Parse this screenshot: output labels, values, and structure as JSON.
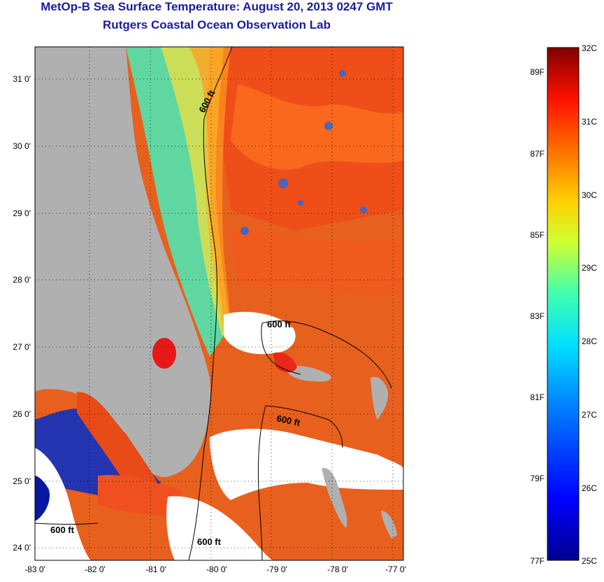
{
  "header": {
    "title": "MetOp-B Sea Surface Temperature:  August 20, 2013 0247 GMT",
    "subtitle": "Rutgers Coastal Ocean Observation Lab"
  },
  "map": {
    "lon_range": [
      -83,
      -76.9
    ],
    "lat_range": [
      23.8,
      31.4
    ],
    "lon_ticks": [
      "-83 0'",
      "-82 0'",
      "-81 0'",
      "-80 0'",
      "-79 0'",
      "-78 0'",
      "-77 0'"
    ],
    "lat_ticks": [
      "31 0'",
      "30 0'",
      "29 0'",
      "28 0'",
      "27 0'",
      "26 0'",
      "25 0'",
      "24 0'"
    ],
    "contour_labels": [
      "600 ft",
      "600 ft",
      "600 ft",
      "600 ft",
      "600 ft"
    ],
    "colors": {
      "land": "#b0b0b0",
      "cloud": "#ffffff",
      "warm": "#e8501e",
      "cool": "#5fd0a0"
    }
  },
  "colorbar": {
    "celsius_labels": [
      "32C",
      "31C",
      "30C",
      "29C",
      "28C",
      "27C",
      "26C",
      "25C"
    ],
    "fahrenheit_labels": [
      "89F",
      "87F",
      "85F",
      "83F",
      "81F",
      "79F",
      "77F"
    ]
  }
}
